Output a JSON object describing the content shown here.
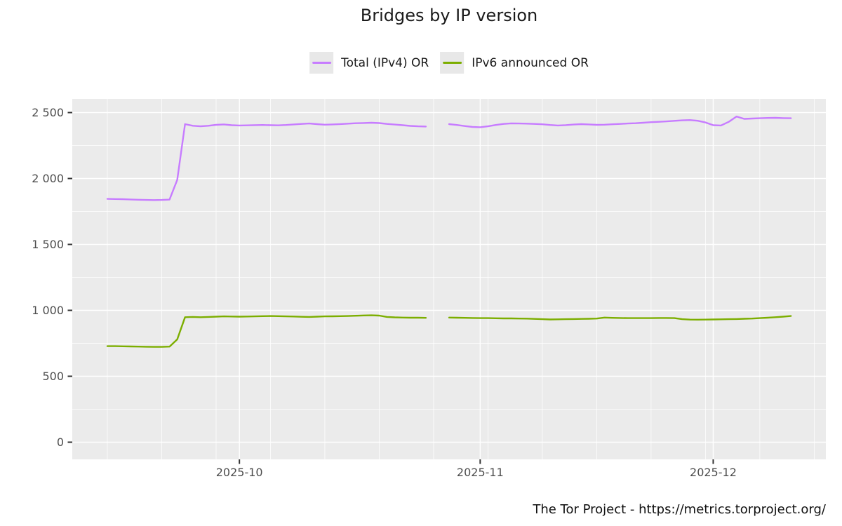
{
  "header": {
    "title": "Bridges by IP version"
  },
  "legend": {
    "position": "top-center",
    "key_fill": "#E8E8E8",
    "items": [
      {
        "label": "Total (IPv4) OR",
        "color": "#C77CFF"
      },
      {
        "label": "IPv6 announced OR",
        "color": "#7CAE00"
      }
    ]
  },
  "footer": {
    "caption": "The Tor Project - https://metrics.torproject.org/"
  },
  "chart_data": {
    "type": "line",
    "title": "Bridges by IP version",
    "xlabel": "",
    "ylabel": "",
    "panel": {
      "bg": "#EBEBEB",
      "grid_color": "#FFFFFF",
      "tick_color": "#333333",
      "axis_text_color": "#4D4D4D"
    },
    "x_axis": {
      "type": "date",
      "data_start": "2025-09-14",
      "data_end": "2025-12-11",
      "major_ticks": [
        {
          "date": "2025-10-01",
          "label": "2025-10"
        },
        {
          "date": "2025-11-01",
          "label": "2025-11"
        },
        {
          "date": "2025-12-01",
          "label": "2025-12"
        }
      ],
      "minor_grid": "weekly (Sundays)"
    },
    "y_axis": {
      "min": 0,
      "max": 2500,
      "major_step": 500,
      "minor_step": 250,
      "tick_values": [
        0,
        500,
        1000,
        1500,
        2000,
        2500
      ],
      "tick_labels": [
        "0",
        "500",
        "1 000",
        "1 500",
        "2 000",
        "2 500"
      ]
    },
    "missing_dates": [
      "2025-10-26",
      "2025-10-27"
    ],
    "series": [
      {
        "name": "Total (IPv4) OR",
        "color": "#C77CFF",
        "segments": [
          {
            "start_date": "2025-09-14",
            "daily_values": [
              1845,
              1844,
              1843,
              1841,
              1839,
              1837,
              1836,
              1837,
              1840,
              1990,
              2412,
              2400,
              2396,
              2400,
              2407,
              2410,
              2404,
              2402,
              2403,
              2405,
              2406,
              2404,
              2403,
              2406,
              2410,
              2414,
              2417,
              2412,
              2408,
              2410,
              2413,
              2416,
              2419,
              2421,
              2423,
              2420,
              2414,
              2409,
              2404,
              2399,
              2396,
              2394
            ]
          },
          {
            "start_date": "2025-10-28",
            "daily_values": [
              2412,
              2406,
              2398,
              2391,
              2389,
              2396,
              2406,
              2414,
              2418,
              2417,
              2416,
              2414,
              2411,
              2406,
              2402,
              2405,
              2409,
              2412,
              2410,
              2407,
              2408,
              2411,
              2414,
              2417,
              2419,
              2423,
              2427,
              2430,
              2433,
              2437,
              2441,
              2443,
              2438,
              2425,
              2404,
              2402,
              2430,
              2470,
              2452,
              2455,
              2457,
              2459,
              2460,
              2458,
              2457
            ]
          }
        ]
      },
      {
        "name": "IPv6 announced OR",
        "color": "#7CAE00",
        "segments": [
          {
            "start_date": "2025-09-14",
            "daily_values": [
              728,
              728,
              727,
              726,
              725,
              724,
              723,
              723,
              725,
              780,
              948,
              950,
              948,
              950,
              952,
              954,
              953,
              952,
              953,
              954,
              956,
              957,
              956,
              954,
              953,
              951,
              950,
              952,
              954,
              955,
              956,
              957,
              959,
              961,
              962,
              960,
              950,
              947,
              945,
              944,
              944,
              943
            ]
          },
          {
            "start_date": "2025-10-28",
            "daily_values": [
              945,
              944,
              943,
              942,
              941,
              941,
              940,
              939,
              939,
              938,
              937,
              935,
              933,
              931,
              932,
              933,
              934,
              935,
              936,
              938,
              945,
              943,
              942,
              941,
              941,
              941,
              941,
              942,
              942,
              941,
              933,
              930,
              929,
              930,
              931,
              932,
              933,
              934,
              936,
              938,
              941,
              944,
              948,
              952,
              957
            ]
          }
        ]
      }
    ]
  }
}
